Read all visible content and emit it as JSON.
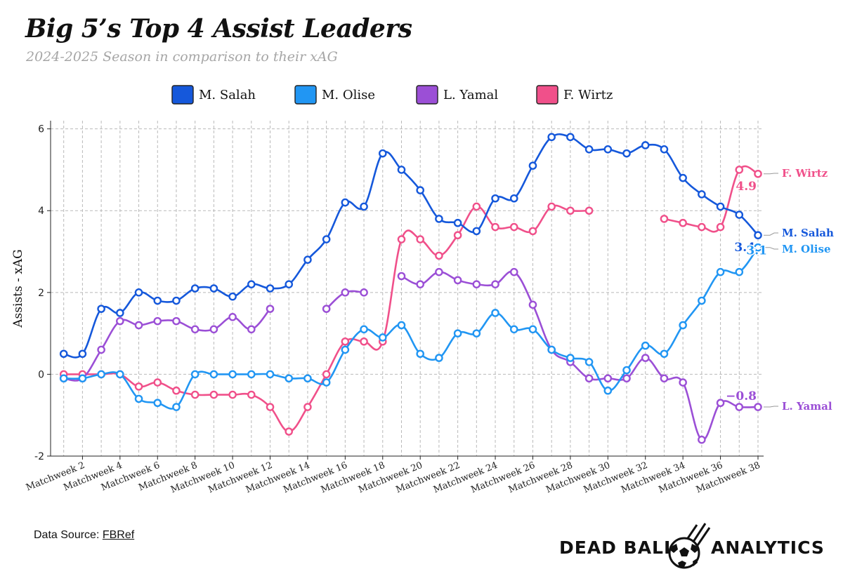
{
  "title": "Big 5’s Top 4 Assist Leaders",
  "subtitle": "2024-2025 Season in comparison to their xAG",
  "source": {
    "label": "Data Source:",
    "link_text": "FBRef"
  },
  "brand": {
    "left": "DEAD BALL",
    "right": "ANALYTICS",
    "icon": "soccer-ball-icon"
  },
  "chart_data": {
    "type": "line",
    "title": "Big 5’s Top 4 Assist Leaders",
    "subtitle": "2024-2025 Season in comparison to their xAG",
    "xlabel": "",
    "ylabel": "Assists - xAG",
    "ylim": [
      -2,
      6.2
    ],
    "yticks": [
      -2,
      0,
      2,
      4,
      6
    ],
    "grid": true,
    "legend_position": "top",
    "x": [
      1,
      2,
      3,
      4,
      5,
      6,
      7,
      8,
      9,
      10,
      11,
      12,
      13,
      14,
      15,
      16,
      17,
      18,
      19,
      20,
      21,
      22,
      23,
      24,
      25,
      26,
      27,
      28,
      29,
      30,
      31,
      32,
      33,
      34,
      35,
      36,
      37,
      38
    ],
    "xtick_labels": [
      "Matchweek 2",
      "Matchweek 4",
      "Matchweek 6",
      "Matchweek 8",
      "Matchweek 10",
      "Matchweek 12",
      "Matchweek 14",
      "Matchweek 16",
      "Matchweek 18",
      "Matchweek 20",
      "Matchweek 22",
      "Matchweek 24",
      "Matchweek 26",
      "Matchweek 28",
      "Matchweek 30",
      "Matchweek 32",
      "Matchweek 34",
      "Matchweek 36",
      "Matchweek 38"
    ],
    "xtick_values": [
      2,
      4,
      6,
      8,
      10,
      12,
      14,
      16,
      18,
      20,
      22,
      24,
      26,
      28,
      30,
      32,
      34,
      36,
      38
    ],
    "series": [
      {
        "name": "M. Salah",
        "color": "#1558db",
        "values": [
          0.5,
          0.5,
          1.6,
          1.5,
          2.0,
          1.8,
          1.8,
          2.1,
          2.1,
          1.9,
          2.2,
          2.1,
          2.2,
          2.8,
          3.3,
          4.2,
          4.1,
          5.4,
          5.0,
          4.5,
          3.8,
          3.7,
          3.5,
          4.3,
          4.3,
          5.1,
          5.8,
          5.8,
          5.5,
          5.5,
          5.4,
          5.6,
          5.5,
          4.8,
          4.4,
          4.1,
          3.9,
          3.4
        ],
        "final_label": "3.4",
        "end_label": "M. Salah"
      },
      {
        "name": "M. Olise",
        "color": "#2196f3",
        "values": [
          -0.1,
          -0.1,
          0,
          0,
          -0.6,
          -0.7,
          -0.8,
          0,
          0,
          0,
          0,
          0,
          -0.1,
          -0.1,
          -0.2,
          0.6,
          1.1,
          0.9,
          1.2,
          0.5,
          0.4,
          1.0,
          1.0,
          1.5,
          1.1,
          1.1,
          0.6,
          0.4,
          0.3,
          -0.4,
          0.1,
          0.7,
          0.5,
          1.2,
          1.8,
          2.5,
          2.5,
          3.1
        ],
        "final_label": "3.1",
        "end_label": "M. Olise"
      },
      {
        "name": "L. Yamal",
        "color": "#9b4fd6",
        "values": [
          -0.1,
          -0.1,
          0.6,
          1.3,
          1.2,
          1.3,
          1.3,
          1.1,
          1.1,
          1.4,
          1.1,
          1.6,
          null,
          null,
          1.6,
          2.0,
          2.0,
          null,
          2.4,
          2.2,
          2.5,
          2.3,
          2.2,
          2.2,
          2.5,
          1.7,
          0.6,
          0.3,
          -0.1,
          -0.1,
          -0.1,
          0.4,
          -0.1,
          -0.2,
          -1.6,
          -0.7,
          -0.8,
          -0.8
        ],
        "final_label": "−0.8",
        "end_label": "L. Yamal"
      },
      {
        "name": "F. Wirtz",
        "color": "#f0508a",
        "values": [
          0,
          0,
          0,
          0,
          -0.3,
          -0.2,
          -0.4,
          -0.5,
          -0.5,
          -0.5,
          -0.5,
          -0.8,
          -1.4,
          -0.8,
          0,
          0.8,
          0.8,
          0.8,
          3.3,
          3.3,
          2.9,
          3.4,
          4.1,
          3.6,
          3.6,
          3.5,
          4.1,
          4.0,
          4.0,
          null,
          null,
          null,
          3.8,
          3.7,
          3.6,
          3.6,
          5.0,
          4.9
        ],
        "final_label": "4.9",
        "end_label": "F. Wirtz"
      }
    ]
  }
}
